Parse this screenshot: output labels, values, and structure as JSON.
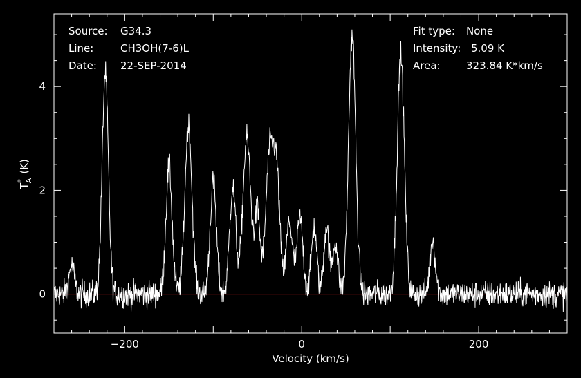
{
  "header": {
    "left": [
      {
        "key": "Source:",
        "value": "G34.3"
      },
      {
        "key": "Line:",
        "value": "CH3OH(7-6)L"
      },
      {
        "key": "Date:",
        "value": "22-SEP-2014"
      }
    ],
    "right": [
      {
        "key": "Fit type:",
        "value": "None"
      },
      {
        "key": "Intensity:",
        "value": "5.09 K"
      },
      {
        "key": "Area:",
        "value": "323.84 K*km/s"
      }
    ]
  },
  "colors": {
    "background": "#000000",
    "spectrum": "#ffffff",
    "baseline": "#ff2020",
    "axes": "#ffffff"
  },
  "chart_data": {
    "type": "line",
    "title": "",
    "xlabel": "Velocity (km/s)",
    "ylabel_main": "T",
    "ylabel_sup": "*",
    "ylabel_sub": "A",
    "ylabel_unit": "(K)",
    "xlim": [
      -280,
      300
    ],
    "ylim": [
      -0.75,
      5.4
    ],
    "xticks": [
      -200,
      0,
      200
    ],
    "xtick_labels": [
      "−200",
      "0",
      "200"
    ],
    "yticks": [
      0,
      2,
      4
    ],
    "ytick_labels": [
      "0",
      "2",
      "4"
    ],
    "grid": false,
    "baseline_y": 0,
    "noise_rms": 0.13,
    "series": [
      {
        "peaks": [
          {
            "x": -260,
            "height": 0.55,
            "width": 3
          },
          {
            "x": -222,
            "height": 4.25,
            "width": 3.5
          },
          {
            "x": -150,
            "height": 2.45,
            "width": 3.5
          },
          {
            "x": -128,
            "height": 3.25,
            "width": 4
          },
          {
            "x": -100,
            "height": 2.15,
            "width": 3.5
          },
          {
            "x": -78,
            "height": 2.05,
            "width": 3.5
          },
          {
            "x": -62,
            "height": 3.0,
            "width": 4.5
          },
          {
            "x": -50,
            "height": 1.55,
            "width": 3
          },
          {
            "x": -36,
            "height": 2.75,
            "width": 4.5
          },
          {
            "x": -28,
            "height": 2.0,
            "width": 3.5
          },
          {
            "x": -14,
            "height": 1.4,
            "width": 3.5
          },
          {
            "x": -2,
            "height": 1.45,
            "width": 3.5
          },
          {
            "x": 14,
            "height": 1.3,
            "width": 3
          },
          {
            "x": 28,
            "height": 1.3,
            "width": 3
          },
          {
            "x": 38,
            "height": 1.0,
            "width": 3
          },
          {
            "x": 57,
            "height": 5.0,
            "width": 4
          },
          {
            "x": 112,
            "height": 4.6,
            "width": 4
          },
          {
            "x": 148,
            "height": 1.05,
            "width": 3
          }
        ]
      }
    ]
  }
}
